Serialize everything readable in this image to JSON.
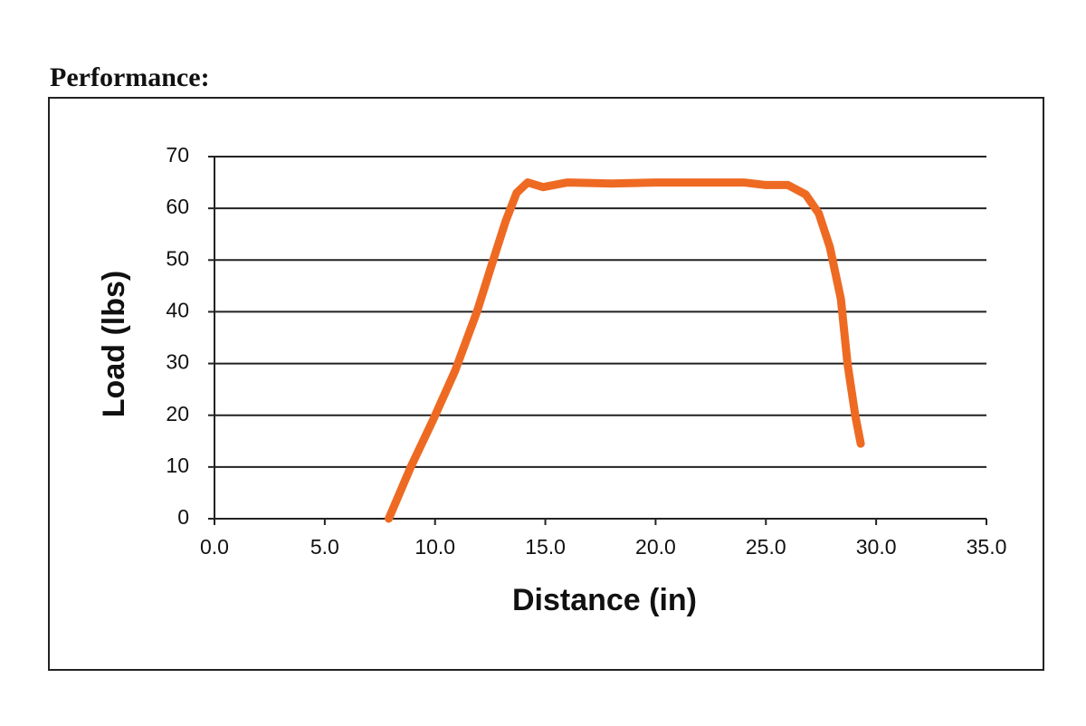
{
  "chart_data": {
    "type": "line",
    "title": "Performance:",
    "x_label": "Distance (in)",
    "y_label": "Load (lbs)",
    "x": [
      7.9,
      8.9,
      9.9,
      10.9,
      11.9,
      12.6,
      13.2,
      13.7,
      14.2,
      14.9,
      16.0,
      18.0,
      20.0,
      24.0,
      25.0,
      26.0,
      26.8,
      27.4,
      27.9,
      28.4,
      28.7,
      29.05,
      29.3
    ],
    "values": [
      0,
      10,
      19,
      28.5,
      40,
      49.5,
      57.5,
      63,
      65,
      64.1,
      65,
      64.8,
      65,
      65,
      64.5,
      64.5,
      62.7,
      59,
      52.5,
      42.5,
      30,
      20,
      14.5
    ],
    "color": "#ee6a23",
    "xlim": [
      0,
      35
    ],
    "xticks": [
      {
        "value": 0,
        "label": "0.0"
      },
      {
        "value": 5,
        "label": "5.0"
      },
      {
        "value": 10,
        "label": "10.0"
      },
      {
        "value": 15,
        "label": "15.0"
      },
      {
        "value": 20,
        "label": "20.0"
      },
      {
        "value": 25,
        "label": "25.0"
      },
      {
        "value": 30,
        "label": "30.0"
      },
      {
        "value": 35,
        "label": "35.0"
      }
    ],
    "ylim": [
      0,
      70
    ],
    "yticks": [
      0,
      10,
      20,
      30,
      40,
      50,
      60,
      70
    ],
    "grid": true
  }
}
